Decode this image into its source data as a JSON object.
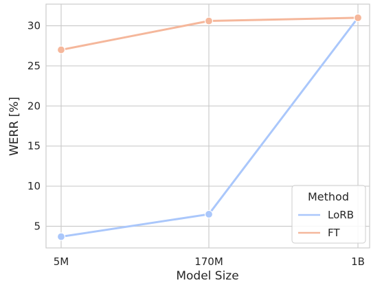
{
  "chart_data": {
    "type": "line",
    "title": "",
    "xlabel": "Model Size",
    "ylabel": "WERR [%]",
    "categories": [
      "5M",
      "170M",
      "1B"
    ],
    "ylim": [
      2.3,
      32.7
    ],
    "yticks": [
      5,
      10,
      15,
      20,
      25,
      30
    ],
    "grid": true,
    "legend": {
      "title": "Method",
      "placement": "bottom-right"
    },
    "series": [
      {
        "name": "LoRB",
        "color": "#aac7fb",
        "values": [
          3.7,
          6.5,
          31.0
        ]
      },
      {
        "name": "FT",
        "color": "#f5b79b",
        "values": [
          27.0,
          30.6,
          31.0
        ]
      }
    ]
  }
}
